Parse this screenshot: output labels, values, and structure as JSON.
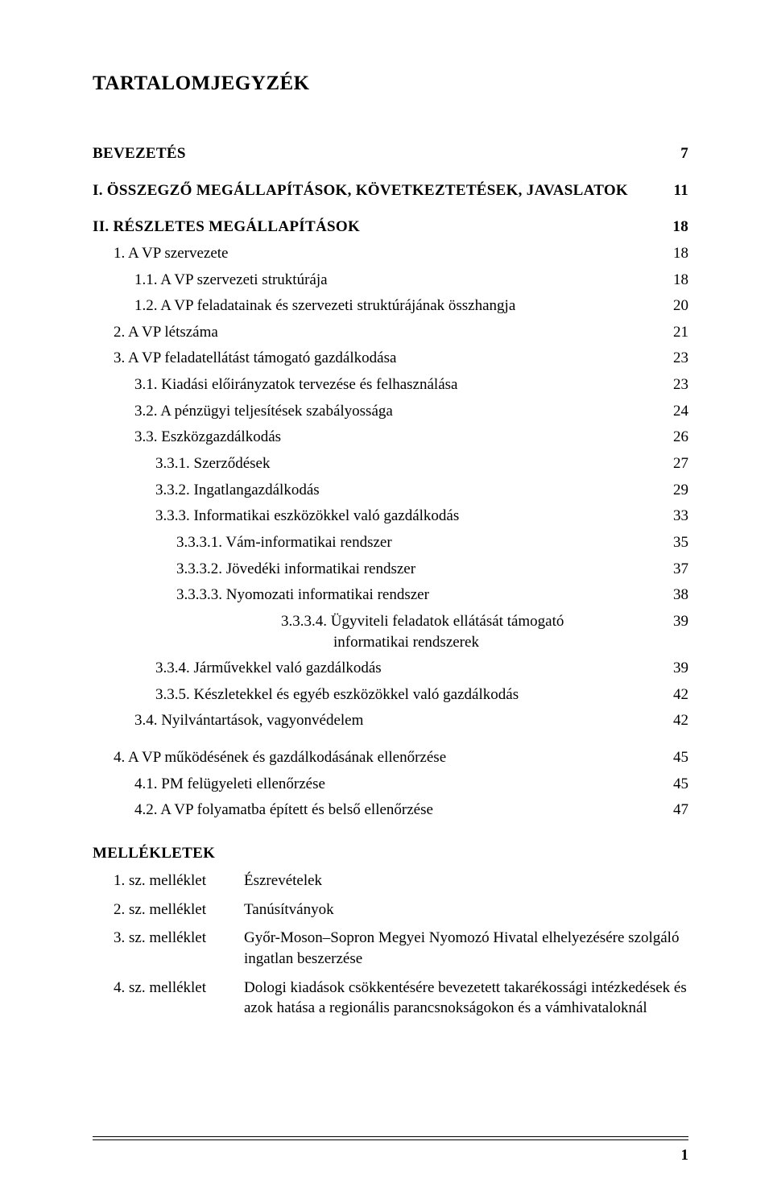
{
  "page_title": "TARTALOMJEGYZÉK",
  "toc": [
    {
      "label": "BEVEZETÉS",
      "page": "7",
      "class": "section-head bigger",
      "indent": 0
    },
    {
      "label": "I. ÖSSZEGZŐ MEGÁLLAPÍTÁSOK, KÖVETKEZTETÉSEK, JAVASLATOK",
      "page": "11",
      "class": "section-head bigger gap-top",
      "indent": 0
    },
    {
      "label": "II. RÉSZLETES MEGÁLLAPÍTÁSOK",
      "page": "18",
      "class": "section-head bigger gap-top",
      "indent": 0
    },
    {
      "label": "1.  A VP szervezete",
      "page": "18",
      "class": "",
      "indent": 1
    },
    {
      "label": "1.1. A VP szervezeti struktúrája",
      "page": "18",
      "class": "",
      "indent": 2
    },
    {
      "label": "1.2. A VP feladatainak és szervezeti struktúrájának összhangja",
      "page": "20",
      "class": "",
      "indent": 2
    },
    {
      "label": "2.  A VP létszáma",
      "page": "21",
      "class": "",
      "indent": 1
    },
    {
      "label": "3.  A VP feladatellátást támogató gazdálkodása",
      "page": "23",
      "class": "",
      "indent": 1
    },
    {
      "label": "3.1. Kiadási előirányzatok tervezése és felhasználása",
      "page": "23",
      "class": "",
      "indent": 2
    },
    {
      "label": "3.2. A pénzügyi teljesítések szabályossága",
      "page": "24",
      "class": "",
      "indent": 2
    },
    {
      "label": "3.3. Eszközgazdálkodás",
      "page": "26",
      "class": "",
      "indent": 2
    },
    {
      "label": "3.3.1. Szerződések",
      "page": "27",
      "class": "",
      "indent": 3
    },
    {
      "label": "3.3.2. Ingatlangazdálkodás",
      "page": "29",
      "class": "",
      "indent": 3
    },
    {
      "label": "3.3.3. Informatikai eszközökkel való gazdálkodás",
      "page": "33",
      "class": "",
      "indent": 3
    },
    {
      "label": "3.3.3.1. Vám-informatikai rendszer",
      "page": "35",
      "class": "",
      "indent": 4
    },
    {
      "label": "3.3.3.2. Jövedéki informatikai rendszer",
      "page": "37",
      "class": "",
      "indent": 4
    },
    {
      "label": "3.3.3.3. Nyomozati informatikai rendszer",
      "page": "38",
      "class": "",
      "indent": 4
    },
    {
      "label": "3.3.3.4. Ügyviteli feladatok ellátását támogató informatikai rendszerek",
      "page": "39",
      "class": "",
      "indent": 4,
      "wrap": true
    },
    {
      "label": "3.3.4. Járművekkel való gazdálkodás",
      "page": "39",
      "class": "",
      "indent": 3
    },
    {
      "label": "3.3.5. Készletekkel és egyéb eszközökkel való gazdálkodás",
      "page": "42",
      "class": "",
      "indent": 3
    },
    {
      "label": "3.4. Nyilvántartások, vagyonvédelem",
      "page": "42",
      "class": "",
      "indent": 2
    },
    {
      "label": "4.  A VP működésének és gazdálkodásának ellenőrzése",
      "page": "45",
      "class": "gap-top",
      "indent": 1
    },
    {
      "label": "4.1. PM felügyeleti ellenőrzése",
      "page": "45",
      "class": "",
      "indent": 2
    },
    {
      "label": "4.2. A VP folyamatba épített és belső ellenőrzése",
      "page": "47",
      "class": "",
      "indent": 2
    }
  ],
  "appendix_title": "MELLÉKLETEK",
  "appendix": [
    {
      "num": "1. sz. melléklet",
      "desc": "Észrevételek"
    },
    {
      "num": "2. sz. melléklet",
      "desc": "Tanúsítványok"
    },
    {
      "num": "3. sz. melléklet",
      "desc": "Győr-Moson–Sopron Megyei Nyomozó Hivatal elhelyezésére szolgáló ingatlan beszerzése"
    },
    {
      "num": "4. sz. melléklet",
      "desc": "Dologi kiadások csökkentésére bevezetett takarékossági intézkedések és azok hatása a regionális parancsnokságokon és a vámhivataloknál"
    }
  ],
  "page_number": "1",
  "colors": {
    "text": "#000000",
    "background": "#ffffff"
  }
}
